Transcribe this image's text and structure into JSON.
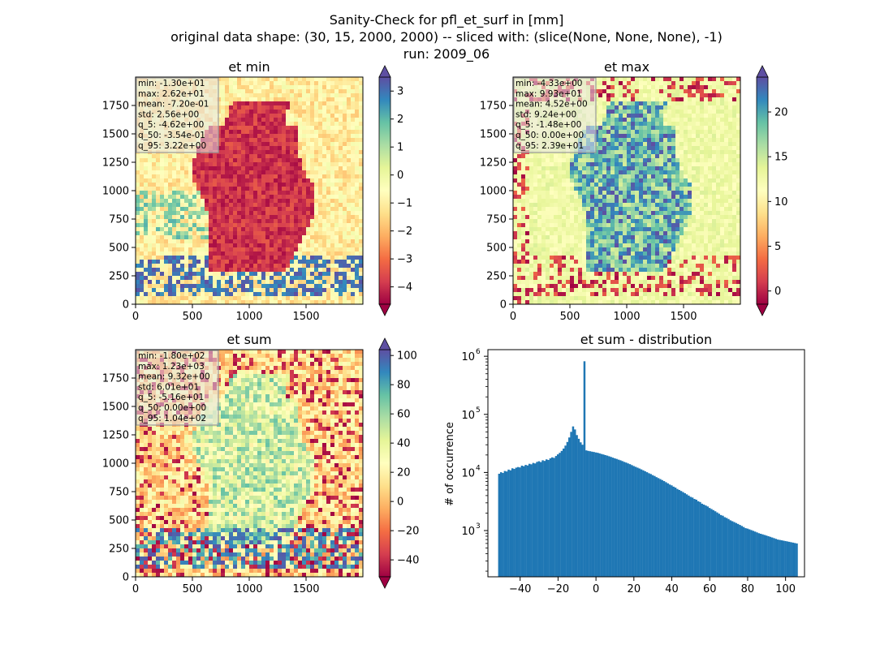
{
  "suptitle": [
    "Sanity-Check for pfl_et_surf in [mm]",
    "original data shape: (30, 15, 2000, 2000) -- sliced with: (slice(None, None, None), -1)",
    "run: 2009_06"
  ],
  "colormap": [
    "#9e0142",
    "#d53e4f",
    "#f46d43",
    "#fdae61",
    "#fee08b",
    "#ffffbf",
    "#e6f598",
    "#abdda4",
    "#66c2a5",
    "#3288bd",
    "#5e4fa2"
  ],
  "panels": [
    {
      "title": "et min",
      "xticks": [
        "0",
        "500",
        "1000",
        "1500"
      ],
      "yticks": [
        "0",
        "250",
        "500",
        "750",
        "1000",
        "1250",
        "1500",
        "1750"
      ],
      "stats": [
        "min: -1.30e+01",
        "max: 2.62e+01",
        "mean: -7.20e-01",
        "std: 2.56e+00",
        "q_5: -4.62e+00",
        "q_50: -3.54e-01",
        "q_95: 3.22e+00"
      ],
      "cbar_ticks": [
        "3",
        "2",
        "1",
        "0",
        "−1",
        "−2",
        "−3",
        "−4"
      ],
      "cbar_values": [
        3,
        2,
        1,
        0,
        -1,
        -2,
        -3,
        -4
      ],
      "vmin": -4.62,
      "vmax": 3.5,
      "pattern": "min"
    },
    {
      "title": "et max",
      "xticks": [
        "0",
        "500",
        "1000",
        "1500"
      ],
      "yticks": [
        "0",
        "250",
        "500",
        "750",
        "1000",
        "1250",
        "1500",
        "1750"
      ],
      "stats": [
        "min: -4.33e+00",
        "max: 9.93e+01",
        "mean: 4.52e+00",
        "std: 9.24e+00",
        "q_5: -1.48e+00",
        "q_50: 0.00e+00",
        "q_95: 2.39e+01"
      ],
      "cbar_ticks": [
        "20",
        "15",
        "10",
        "5",
        "0"
      ],
      "cbar_values": [
        20,
        15,
        10,
        5,
        0
      ],
      "vmin": -1.48,
      "vmax": 23.9,
      "pattern": "max"
    },
    {
      "title": "et sum",
      "xticks": [
        "0",
        "500",
        "1000",
        "1500"
      ],
      "yticks": [
        "0",
        "250",
        "500",
        "750",
        "1000",
        "1250",
        "1500",
        "1750"
      ],
      "stats": [
        "min: -1.80e+02",
        "max: 1.23e+03",
        "mean: 9.32e+00",
        "std: 6.01e+01",
        "q_5: -5.16e+01",
        "q_50: 0.00e+00",
        "q_95: 1.04e+02"
      ],
      "cbar_ticks": [
        "100",
        "80",
        "60",
        "40",
        "20",
        "0",
        "−20",
        "−40"
      ],
      "cbar_values": [
        100,
        80,
        60,
        40,
        20,
        0,
        -20,
        -40
      ],
      "vmin": -51.6,
      "vmax": 104,
      "pattern": "sum"
    }
  ],
  "chart_data": {
    "type": "bar",
    "title": "et sum - distribution",
    "xlabel": "",
    "ylabel": "# of occurrence",
    "yscale": "log",
    "xlim": [
      -57,
      110
    ],
    "ylim": [
      160,
      1300000
    ],
    "xticks": [
      "−40",
      "−20",
      "0",
      "20",
      "40",
      "60",
      "80",
      "100"
    ],
    "xtick_values": [
      -40,
      -20,
      0,
      20,
      40,
      60,
      80,
      100
    ],
    "ytick_labels": [
      "10",
      "10",
      "10",
      "10"
    ],
    "ytick_exponents": [
      "3",
      "4",
      "5",
      "6"
    ],
    "ytick_values": [
      1000,
      10000,
      100000,
      1000000
    ],
    "bin_start": -51.6,
    "bin_width": 1.0,
    "counts": [
      9500,
      10100,
      9800,
      10600,
      10400,
      11200,
      10900,
      11800,
      11500,
      12100,
      12400,
      12200,
      13100,
      12800,
      13500,
      13200,
      14100,
      13800,
      14600,
      14300,
      15200,
      15600,
      15100,
      16200,
      15800,
      16800,
      16400,
      17500,
      18200,
      17800,
      19200,
      20500,
      21800,
      23500,
      25800,
      29000,
      33500,
      40000,
      50000,
      62000,
      55000,
      44000,
      38000,
      33000,
      30000,
      820000,
      24000,
      23500,
      23200,
      22800,
      22500,
      22100,
      21800,
      21300,
      20800,
      20400,
      19900,
      19500,
      19000,
      18500,
      18000,
      17500,
      17100,
      16600,
      16200,
      15700,
      15200,
      14800,
      14300,
      13900,
      13400,
      12900,
      12500,
      12100,
      11700,
      11300,
      10900,
      10500,
      10100,
      9700,
      9400,
      9000,
      8700,
      8300,
      8000,
      7700,
      7400,
      7100,
      6800,
      6500,
      6200,
      6000,
      5700,
      5500,
      5200,
      5000,
      4800,
      4600,
      4400,
      4200,
      4000,
      3800,
      3700,
      3500,
      3400,
      3200,
      3100,
      2900,
      2800,
      2700,
      2600,
      2450,
      2350,
      2250,
      2150,
      2050,
      1950,
      1850,
      1800,
      1700,
      1650,
      1580,
      1500,
      1450,
      1400,
      1350,
      1300,
      1250,
      1200,
      1150,
      1100,
      1080,
      1050,
      1020,
      990,
      960,
      930,
      900,
      880,
      860,
      840,
      820,
      800,
      780,
      760,
      740,
      720,
      700,
      690,
      680,
      670,
      660,
      650,
      640,
      630,
      620,
      610,
      600
    ]
  }
}
